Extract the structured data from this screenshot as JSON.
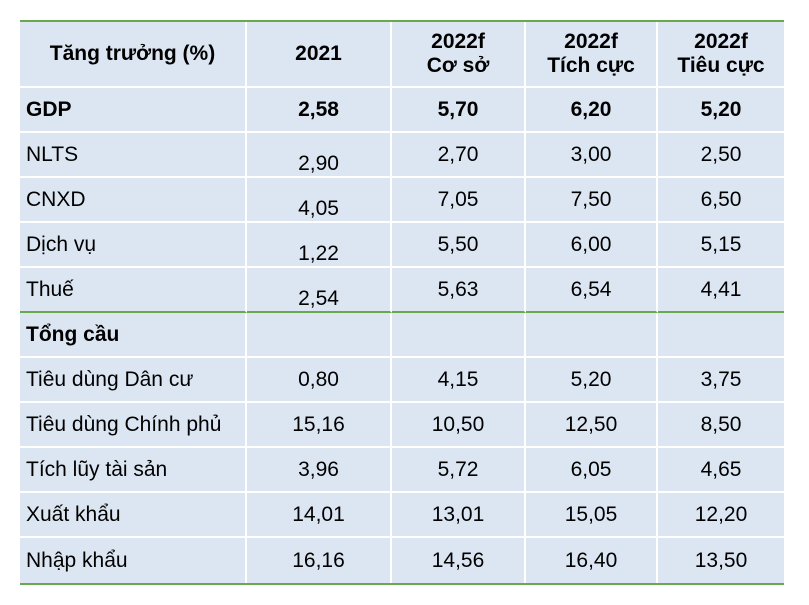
{
  "header": {
    "col0": "Tăng trưởng (%)",
    "col1": "2021",
    "col2_line1": "2022f",
    "col2_line2": "Cơ sở",
    "col3_line1": "2022f",
    "col3_line2": "Tích cực",
    "col4_line1": "2022f",
    "col4_line2": "Tiêu cực"
  },
  "rows": [
    {
      "label": "GDP",
      "v2021": "2,58",
      "base": "5,70",
      "pos": "6,20",
      "neg": "5,20"
    },
    {
      "label": "NLTS",
      "v2021": "2,90",
      "base": "2,70",
      "pos": "3,00",
      "neg": "2,50"
    },
    {
      "label": "CNXD",
      "v2021": "4,05",
      "base": "7,05",
      "pos": "7,50",
      "neg": "6,50"
    },
    {
      "label": "Dịch vụ",
      "v2021": "1,22",
      "base": "5,50",
      "pos": "6,00",
      "neg": "5,15"
    },
    {
      "label": "Thuế",
      "v2021": "2,54",
      "base": "5,63",
      "pos": "6,54",
      "neg": "4,41"
    },
    {
      "label": "Tổng cầu",
      "v2021": "",
      "base": "",
      "pos": "",
      "neg": ""
    },
    {
      "label": "Tiêu dùng Dân cư",
      "v2021": "0,80",
      "base": "4,15",
      "pos": "5,20",
      "neg": "3,75"
    },
    {
      "label": "Tiêu dùng Chính phủ",
      "v2021": "15,16",
      "base": "10,50",
      "pos": "12,50",
      "neg": "8,50"
    },
    {
      "label": "Tích lũy tài sản",
      "v2021": "3,96",
      "base": "5,72",
      "pos": "6,05",
      "neg": "4,65"
    },
    {
      "label": "Xuất khẩu",
      "v2021": "14,01",
      "base": "13,01",
      "pos": "15,05",
      "neg": "12,20"
    },
    {
      "label": "Nhập khẩu",
      "v2021": "16,16",
      "base": "14,56",
      "pos": "16,40",
      "neg": "13,50"
    }
  ]
}
